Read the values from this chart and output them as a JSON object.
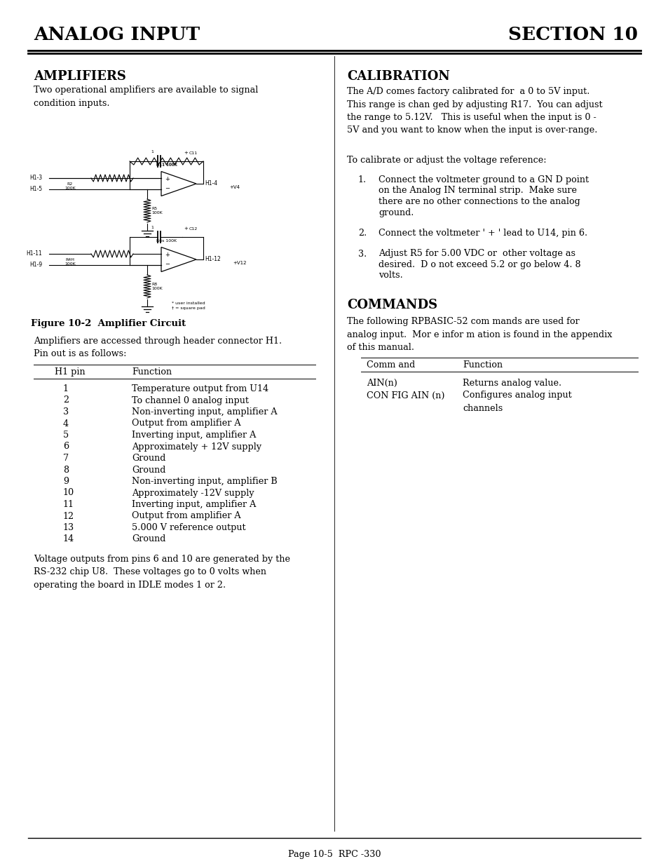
{
  "page_title_left": "ANALOG INPUT",
  "page_title_right": "SECTION 10",
  "section1_title": "AMPLIFIERS",
  "section1_para1": "Two operational amplifiers are available to signal\ncondition inputs.",
  "figure_caption": "Figure 10-2  Amplifier Circuit",
  "section1_para2": "Amplifiers are accessed through header connector H1.\nPin out is as follows:",
  "table_header_pin": "H1 pin",
  "table_header_function": "Function",
  "table_rows": [
    [
      "1",
      "Temperature output from U14"
    ],
    [
      "2",
      "To channel 0 analog input"
    ],
    [
      "3",
      "Non-inverting input, amplifier A"
    ],
    [
      "4",
      "Output from amplifier A"
    ],
    [
      "5",
      "Inverting input, amplifier A"
    ],
    [
      "6",
      "Approximately + 12V supply"
    ],
    [
      "7",
      "Ground"
    ],
    [
      "8",
      "Ground"
    ],
    [
      "9",
      "Non-inverting input, amplifier B"
    ],
    [
      "10",
      "Approximately -12V supply"
    ],
    [
      "11",
      "Inverting input, amplifier A"
    ],
    [
      "12",
      "Output from amplifier A"
    ],
    [
      "13",
      "5.000 V reference output"
    ],
    [
      "14",
      "Ground"
    ]
  ],
  "section1_para3": "Voltage outputs from pins 6 and 10 are generated by the\nRS-232 chip U8.  These voltages go to 0 volts when\noperating the board in IDLE modes 1 or 2.",
  "section2_title": "CALIBRATION",
  "section2_para1": "The A/D comes factory calibrated for  a 0 to 5V input.\nThis range is chan ged by adjusting R17.  You can adjust\nthe range to 5.12V.   This is useful when the input is 0 -\n5V and you want to know when the input is over-range.",
  "section2_para2": "To calibrate or adjust the voltage reference:",
  "calib_steps": [
    [
      "Connect the voltmeter ground to a GN D point",
      "on the Analog IN terminal strip.  Make sure",
      "there are no other connections to the analog",
      "ground."
    ],
    [
      "Connect the voltmeter ' + ' lead to U14, pin 6."
    ],
    [
      "Adjust R5 for 5.00 VDC or  other voltage as",
      "desired.  D o not exceed 5.2 or go below 4. 8",
      "volts."
    ]
  ],
  "section3_title": "COMMANDS",
  "section3_para1": "The following RPBASIC-52 com mands are used for\nanalog input.  Mor e infor m ation is found in the appendix\nof this manual.",
  "cmd_header_cmd": "Comm and",
  "cmd_header_func": "Function",
  "cmd_rows": [
    [
      "AIN(n)",
      "Returns analog value."
    ],
    [
      "CON FIG AIN (n)",
      "Configures analog input\nchannels"
    ]
  ],
  "footer_text": "Page 10-5  RPC -330",
  "bg_color": "#ffffff",
  "text_color": "#000000",
  "title_color": "#000000"
}
